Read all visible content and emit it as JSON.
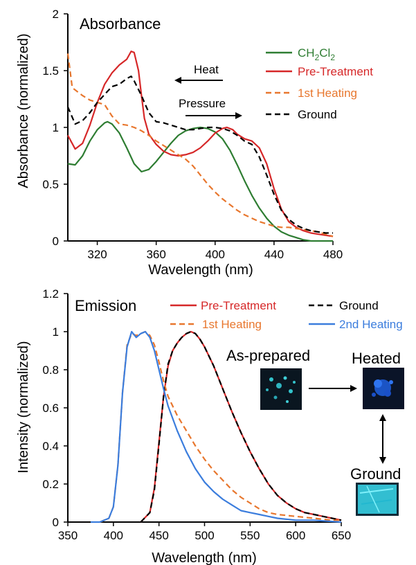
{
  "chart_data": [
    {
      "type": "line",
      "title": "Absorbance",
      "xlabel": "Wavelength (nm)",
      "ylabel": "Absorbance (normalized)",
      "xlim": [
        300,
        480
      ],
      "ylim": [
        0,
        2
      ],
      "x_ticks": [
        320,
        360,
        400,
        440,
        480
      ],
      "y_ticks": [
        0,
        0.5,
        1,
        1.5,
        2
      ],
      "y_tick_labels": [
        "0",
        "0.5",
        "1",
        "1.5",
        "2"
      ],
      "grid": false,
      "legend_position": "top-right",
      "annotations": [
        {
          "text": "Heat",
          "arrow": "left"
        },
        {
          "text": "Pressure",
          "arrow": "right"
        }
      ],
      "series": [
        {
          "name": "CH2Cl2",
          "legend_label": "CH",
          "legend_sub1": "2",
          "legend_mid": "Cl",
          "legend_sub2": "2",
          "color": "#2e7d32",
          "dash": "solid",
          "x": [
            300,
            305,
            310,
            315,
            320,
            325,
            327,
            330,
            335,
            340,
            345,
            350,
            355,
            360,
            365,
            370,
            375,
            380,
            385,
            390,
            395,
            400,
            405,
            410,
            415,
            420,
            425,
            430,
            435,
            440,
            445,
            450,
            455,
            460,
            465,
            470,
            475,
            480
          ],
          "y": [
            0.68,
            0.67,
            0.75,
            0.88,
            0.98,
            1.04,
            1.05,
            1.03,
            0.95,
            0.82,
            0.68,
            0.61,
            0.63,
            0.7,
            0.78,
            0.86,
            0.93,
            0.97,
            0.99,
            1.0,
            0.99,
            0.96,
            0.9,
            0.8,
            0.67,
            0.53,
            0.4,
            0.29,
            0.2,
            0.13,
            0.08,
            0.05,
            0.03,
            0.01,
            0.0,
            0.0,
            0.0,
            0.0
          ]
        },
        {
          "name": "Pre-Treatment",
          "color": "#d62728",
          "dash": "solid",
          "x": [
            300,
            305,
            310,
            315,
            320,
            325,
            330,
            335,
            340,
            343,
            345,
            348,
            350,
            352,
            355,
            360,
            365,
            370,
            375,
            380,
            385,
            390,
            395,
            400,
            405,
            408,
            412,
            415,
            420,
            425,
            430,
            435,
            440,
            445,
            450,
            455,
            460,
            465,
            470,
            475,
            480
          ],
          "y": [
            0.93,
            0.81,
            0.86,
            1.02,
            1.22,
            1.38,
            1.48,
            1.55,
            1.6,
            1.67,
            1.66,
            1.5,
            1.28,
            1.08,
            0.94,
            0.85,
            0.79,
            0.76,
            0.75,
            0.76,
            0.78,
            0.82,
            0.88,
            0.95,
            0.99,
            1.0,
            0.98,
            0.94,
            0.9,
            0.88,
            0.82,
            0.68,
            0.46,
            0.28,
            0.17,
            0.12,
            0.09,
            0.07,
            0.06,
            0.05,
            0.04
          ]
        },
        {
          "name": "1st Heating",
          "color": "#e8772e",
          "dash": "dashed",
          "x": [
            300,
            303,
            305,
            310,
            315,
            320,
            325,
            330,
            335,
            340,
            345,
            350,
            355,
            360,
            365,
            370,
            375,
            380,
            385,
            390,
            395,
            400,
            405,
            410,
            415,
            420,
            425,
            430,
            435,
            440,
            445,
            450,
            455,
            460,
            465,
            470,
            475,
            480
          ],
          "y": [
            1.65,
            1.35,
            1.33,
            1.28,
            1.24,
            1.22,
            1.2,
            1.1,
            1.03,
            1.02,
            1.0,
            0.97,
            0.93,
            0.88,
            0.84,
            0.8,
            0.76,
            0.72,
            0.66,
            0.58,
            0.5,
            0.43,
            0.37,
            0.32,
            0.27,
            0.23,
            0.2,
            0.17,
            0.15,
            0.13,
            0.12,
            0.12,
            0.11,
            0.1,
            0.09,
            0.08,
            0.06,
            0.04
          ]
        },
        {
          "name": "Ground",
          "color": "#000000",
          "dash": "dashed",
          "x": [
            300,
            305,
            310,
            315,
            320,
            325,
            330,
            335,
            340,
            343,
            345,
            350,
            355,
            360,
            365,
            370,
            375,
            380,
            385,
            390,
            395,
            400,
            405,
            410,
            415,
            420,
            425,
            430,
            435,
            440,
            445,
            450,
            455,
            460,
            465,
            470,
            475,
            480
          ],
          "y": [
            1.18,
            1.03,
            1.06,
            1.13,
            1.22,
            1.29,
            1.36,
            1.38,
            1.43,
            1.45,
            1.41,
            1.28,
            1.13,
            1.05,
            1.04,
            1.02,
            1.0,
            0.98,
            0.98,
            0.99,
            1.0,
            1.0,
            0.99,
            0.97,
            0.93,
            0.88,
            0.85,
            0.74,
            0.58,
            0.41,
            0.27,
            0.19,
            0.14,
            0.11,
            0.09,
            0.08,
            0.07,
            0.07
          ]
        }
      ]
    },
    {
      "type": "line",
      "title": "Emission",
      "xlabel": "Wavelength (nm)",
      "ylabel": "Intensity (normalized)",
      "xlim": [
        350,
        650
      ],
      "ylim": [
        0,
        1.2
      ],
      "x_ticks": [
        350,
        400,
        450,
        500,
        550,
        600,
        650
      ],
      "y_ticks": [
        0,
        0.2,
        0.4,
        0.6,
        0.8,
        1,
        1.2
      ],
      "y_tick_labels": [
        "0",
        "0.2",
        "0.4",
        "0.6",
        "0.8",
        "1",
        "1.2"
      ],
      "grid": false,
      "legend_position": "top",
      "series": [
        {
          "name": "Pre-Treatment",
          "color": "#d62728",
          "dash": "solid",
          "x": [
            430,
            440,
            445,
            450,
            455,
            460,
            465,
            470,
            475,
            480,
            485,
            490,
            495,
            500,
            510,
            520,
            530,
            540,
            550,
            560,
            570,
            580,
            590,
            600,
            610,
            620,
            630,
            640,
            650
          ],
          "y": [
            0.0,
            0.05,
            0.18,
            0.42,
            0.66,
            0.82,
            0.9,
            0.94,
            0.97,
            0.99,
            1.0,
            0.99,
            0.96,
            0.92,
            0.82,
            0.7,
            0.58,
            0.47,
            0.37,
            0.28,
            0.2,
            0.14,
            0.1,
            0.07,
            0.05,
            0.04,
            0.03,
            0.02,
            0.01
          ]
        },
        {
          "name": "Ground",
          "color": "#000000",
          "dash": "dashed",
          "x": [
            430,
            440,
            445,
            450,
            455,
            460,
            465,
            470,
            475,
            480,
            485,
            490,
            495,
            500,
            510,
            520,
            530,
            540,
            550,
            560,
            570,
            580,
            590,
            600,
            610,
            620,
            630,
            640,
            650
          ],
          "y": [
            0.0,
            0.05,
            0.17,
            0.41,
            0.66,
            0.83,
            0.9,
            0.94,
            0.97,
            0.99,
            1.0,
            0.99,
            0.96,
            0.92,
            0.82,
            0.7,
            0.58,
            0.47,
            0.37,
            0.28,
            0.2,
            0.14,
            0.1,
            0.07,
            0.05,
            0.04,
            0.03,
            0.02,
            0.01
          ]
        },
        {
          "name": "1st Heating",
          "color": "#e8772e",
          "dash": "dashed",
          "x": [
            385,
            395,
            400,
            405,
            410,
            415,
            420,
            425,
            430,
            435,
            440,
            445,
            450,
            455,
            460,
            470,
            480,
            490,
            500,
            510,
            520,
            530,
            540,
            550,
            560,
            570,
            580,
            600,
            620,
            640,
            650
          ],
          "y": [
            0.0,
            0.02,
            0.08,
            0.3,
            0.68,
            0.93,
            0.99,
            0.98,
            0.99,
            1.0,
            0.98,
            0.93,
            0.84,
            0.74,
            0.66,
            0.56,
            0.48,
            0.4,
            0.33,
            0.27,
            0.22,
            0.17,
            0.13,
            0.1,
            0.07,
            0.05,
            0.04,
            0.03,
            0.02,
            0.01,
            0.01
          ]
        },
        {
          "name": "2nd Heating",
          "color": "#3b7ddd",
          "dash": "solid",
          "x": [
            375,
            385,
            395,
            400,
            405,
            410,
            415,
            420,
            425,
            430,
            435,
            440,
            445,
            450,
            455,
            460,
            470,
            480,
            490,
            500,
            510,
            520,
            530,
            540,
            550,
            560,
            570,
            580,
            600,
            620,
            650
          ],
          "y": [
            0.0,
            0.0,
            0.02,
            0.08,
            0.3,
            0.68,
            0.92,
            1.0,
            0.97,
            0.99,
            1.0,
            0.97,
            0.9,
            0.8,
            0.7,
            0.61,
            0.48,
            0.37,
            0.28,
            0.21,
            0.16,
            0.12,
            0.09,
            0.06,
            0.05,
            0.04,
            0.03,
            0.02,
            0.01,
            0.01,
            0.0
          ]
        }
      ],
      "legend": [
        {
          "label": "Pre-Treatment",
          "color": "#d62728",
          "dash": "solid"
        },
        {
          "label": "Ground",
          "color": "#000000",
          "dash": "dashed"
        },
        {
          "label": "1st Heating",
          "color": "#e8772e",
          "dash": "dashed"
        },
        {
          "label": "2nd Heating",
          "color": "#3b7ddd",
          "dash": "solid"
        }
      ],
      "photos": {
        "as_prepared_label": "As-prepared",
        "heated_label": "Heated",
        "ground_label": "Ground",
        "colors": {
          "as_prepared": "#33c4cc",
          "heated": "#1f5fe0",
          "ground": "#38d8ec",
          "background": "#0a1620"
        }
      }
    }
  ]
}
